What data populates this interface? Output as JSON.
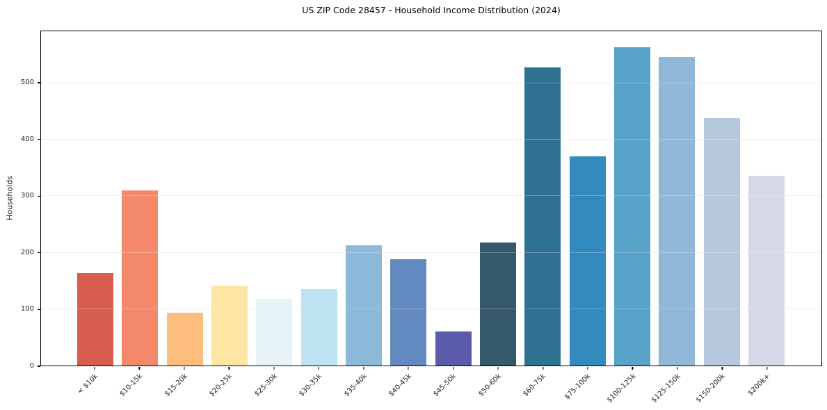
{
  "chart_data": {
    "type": "bar",
    "title": "US ZIP Code 28457 - Household Income Distribution (2024)",
    "xlabel": "",
    "ylabel": "Households",
    "categories": [
      "< $10k",
      "$10-15k",
      "$15-20k",
      "$20-25k",
      "$25-30k",
      "$30-35k",
      "$35-40k",
      "$40-45k",
      "$45-50k",
      "$50-60k",
      "$60-75k",
      "$75-100k",
      "$100-125k",
      "$125-150k",
      "$150-200k",
      "$200k+"
    ],
    "values": [
      164,
      310,
      93,
      141,
      118,
      135,
      213,
      188,
      60,
      218,
      528,
      371,
      564,
      546,
      438,
      336
    ],
    "bar_colors": [
      "#d75e4f",
      "#f4886b",
      "#fcbd7d",
      "#fde5a3",
      "#e7f4f7",
      "#bee2ef",
      "#8cb8d9",
      "#6289c0",
      "#5a5caa",
      "#35586b",
      "#2f7191",
      "#338abc",
      "#58a3ca",
      "#90b7d7",
      "#b7c8dd",
      "#d6d8e7"
    ],
    "yticks": [
      0,
      100,
      200,
      300,
      400,
      500
    ],
    "ylim": [
      0,
      592
    ],
    "grid": true,
    "grid_color": "#ebebeb",
    "spine_color": "#000000",
    "text_color": "#1c1c1c",
    "background": "#ffffff",
    "legend": "none"
  }
}
